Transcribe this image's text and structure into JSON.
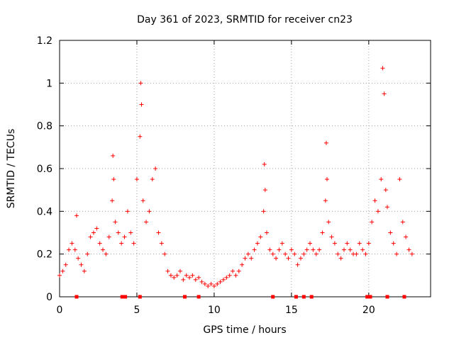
{
  "chart_data": {
    "type": "scatter",
    "title": "Day 361 of 2023, SRMTID for receiver cn23",
    "xlabel": "GPS time / hours",
    "ylabel": "SRMTID / TECUs",
    "xlim": [
      0,
      24
    ],
    "ylim": [
      0,
      1.2
    ],
    "x_ticks": [
      0,
      5,
      10,
      15,
      20
    ],
    "x_tick_labels": [
      "0",
      "5",
      "10",
      "15",
      "20"
    ],
    "y_ticks": [
      0,
      0.2,
      0.4,
      0.6,
      0.8,
      1.0,
      1.2
    ],
    "y_tick_labels": [
      "0",
      "0.2",
      "0.4",
      "0.6",
      "0.8",
      "1",
      "1.2"
    ],
    "grid": true,
    "marker": "+",
    "color": "#ff0000",
    "series": [
      {
        "name": "SRMTID",
        "x": [
          0.0,
          0.2,
          0.4,
          0.6,
          0.8,
          1.0,
          1.1,
          1.2,
          1.4,
          1.6,
          1.8,
          2.0,
          2.2,
          2.4,
          2.6,
          2.8,
          3.0,
          3.2,
          3.4,
          3.45,
          3.5,
          3.6,
          3.8,
          4.0,
          4.2,
          4.4,
          4.6,
          4.8,
          5.0,
          5.2,
          5.25,
          5.3,
          5.4,
          5.6,
          5.8,
          6.0,
          6.2,
          6.4,
          6.6,
          6.8,
          7.0,
          7.2,
          7.4,
          7.6,
          7.8,
          8.0,
          8.2,
          8.4,
          8.6,
          8.8,
          9.0,
          9.2,
          9.4,
          9.6,
          9.8,
          10.0,
          10.2,
          10.4,
          10.6,
          10.8,
          11.0,
          11.2,
          11.4,
          11.6,
          11.8,
          12.0,
          12.2,
          12.4,
          12.6,
          12.8,
          13.0,
          13.2,
          13.25,
          13.3,
          13.4,
          13.6,
          13.8,
          14.0,
          14.2,
          14.4,
          14.6,
          14.8,
          15.0,
          15.2,
          15.4,
          15.6,
          15.8,
          16.0,
          16.2,
          16.4,
          16.6,
          16.8,
          17.0,
          17.2,
          17.25,
          17.3,
          17.4,
          17.6,
          17.8,
          18.0,
          18.2,
          18.4,
          18.6,
          18.8,
          19.0,
          19.2,
          19.4,
          19.6,
          19.8,
          20.0,
          20.2,
          20.4,
          20.6,
          20.8,
          20.9,
          21.0,
          21.1,
          21.2,
          21.4,
          21.6,
          21.8,
          22.0,
          22.2,
          22.4,
          22.6,
          22.8
        ],
        "y": [
          0.1,
          0.12,
          0.15,
          0.22,
          0.25,
          0.22,
          0.38,
          0.18,
          0.15,
          0.12,
          0.2,
          0.28,
          0.3,
          0.32,
          0.25,
          0.22,
          0.2,
          0.28,
          0.45,
          0.66,
          0.55,
          0.35,
          0.3,
          0.25,
          0.28,
          0.4,
          0.3,
          0.25,
          0.55,
          0.75,
          1.0,
          0.9,
          0.45,
          0.35,
          0.4,
          0.55,
          0.6,
          0.3,
          0.25,
          0.2,
          0.12,
          0.1,
          0.09,
          0.1,
          0.12,
          0.08,
          0.1,
          0.09,
          0.1,
          0.08,
          0.09,
          0.07,
          0.06,
          0.05,
          0.06,
          0.05,
          0.06,
          0.07,
          0.08,
          0.09,
          0.1,
          0.12,
          0.1,
          0.12,
          0.15,
          0.18,
          0.2,
          0.18,
          0.22,
          0.25,
          0.28,
          0.4,
          0.62,
          0.5,
          0.3,
          0.22,
          0.2,
          0.18,
          0.22,
          0.25,
          0.2,
          0.18,
          0.22,
          0.2,
          0.15,
          0.18,
          0.2,
          0.22,
          0.25,
          0.22,
          0.2,
          0.22,
          0.3,
          0.45,
          0.72,
          0.55,
          0.35,
          0.28,
          0.25,
          0.2,
          0.18,
          0.22,
          0.25,
          0.22,
          0.2,
          0.2,
          0.25,
          0.22,
          0.2,
          0.25,
          0.35,
          0.45,
          0.4,
          0.55,
          1.07,
          0.95,
          0.5,
          0.42,
          0.3,
          0.25,
          0.2,
          0.55,
          0.35,
          0.28,
          0.22,
          0.2
        ]
      }
    ],
    "axis_markers": [
      1.1,
      4.05,
      4.25,
      5.2,
      8.1,
      9.0,
      13.8,
      15.3,
      15.8,
      16.3,
      19.9,
      20.1,
      21.2,
      22.3
    ]
  }
}
